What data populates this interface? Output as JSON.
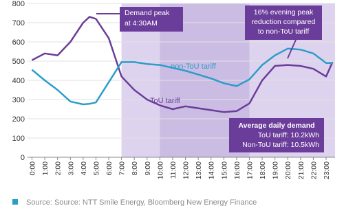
{
  "chart_data": {
    "type": "line",
    "x": [
      0,
      1,
      2,
      3,
      4,
      4.5,
      5,
      6,
      7,
      8,
      9,
      10,
      11,
      12,
      13,
      14,
      15,
      16,
      17,
      18,
      19,
      20,
      21,
      22,
      23,
      23.5
    ],
    "series": [
      {
        "name": "ToU tariff",
        "color": "#6b3d9a",
        "values": [
          505,
          540,
          530,
          600,
          700,
          730,
          720,
          620,
          420,
          350,
          300,
          270,
          250,
          265,
          255,
          245,
          235,
          240,
          280,
          400,
          475,
          480,
          475,
          460,
          420,
          495
        ]
      },
      {
        "name": "non-ToU tariff",
        "color": "#2c9dc9",
        "values": [
          455,
          400,
          350,
          290,
          275,
          278,
          285,
          390,
          495,
          495,
          485,
          480,
          465,
          450,
          430,
          410,
          385,
          370,
          405,
          480,
          530,
          565,
          560,
          540,
          490,
          490
        ]
      }
    ],
    "xlim": [
      -0.35,
      23.7
    ],
    "xticks": [
      {
        "value": 0,
        "label": "0:00"
      },
      {
        "value": 1,
        "label": "1:00"
      },
      {
        "value": 2,
        "label": "2:00"
      },
      {
        "value": 3,
        "label": "3:00"
      },
      {
        "value": 4,
        "label": "4:00"
      },
      {
        "value": 5,
        "label": "5:00"
      },
      {
        "value": 6,
        "label": "6:00"
      },
      {
        "value": 7,
        "label": "7:00"
      },
      {
        "value": 8,
        "label": "8:00"
      },
      {
        "value": 9,
        "label": "9:00"
      },
      {
        "value": 10,
        "label": "10:00"
      },
      {
        "value": 11,
        "label": "11:00"
      },
      {
        "value": 12,
        "label": "12:00"
      },
      {
        "value": 13,
        "label": "13:00"
      },
      {
        "value": 14,
        "label": "14:00"
      },
      {
        "value": 15,
        "label": "15:00"
      },
      {
        "value": 16,
        "label": "16:00"
      },
      {
        "value": 17,
        "label": "17:00"
      },
      {
        "value": 18,
        "label": "18:00"
      },
      {
        "value": 19,
        "label": "19:00"
      },
      {
        "value": 20,
        "label": "20:00"
      },
      {
        "value": 21,
        "label": "21:00"
      },
      {
        "value": 22,
        "label": "22:00"
      },
      {
        "value": 23,
        "label": "23:00"
      }
    ],
    "ylim": [
      0,
      800
    ],
    "yticks": [
      0,
      100,
      200,
      300,
      400,
      500,
      600,
      700,
      800
    ],
    "bands": [
      {
        "from": 7,
        "to": 23.7,
        "color": "#ded3ee"
      },
      {
        "from": 10,
        "to": 17,
        "color": "#cbbce3"
      }
    ],
    "annotations": {
      "peak": [
        "Demand peak",
        "at 4:30AM"
      ],
      "evening": [
        "16% evening peak",
        "reduction compared",
        "to non-ToU tariff"
      ],
      "average": [
        "Average daily demand",
        "ToU tariff: 10.2kWh",
        "Non-ToU tariff: 10.5kWh"
      ]
    },
    "source": "Source: Source: NTT Smile Energy, Bloomberg New Energy Finance"
  }
}
